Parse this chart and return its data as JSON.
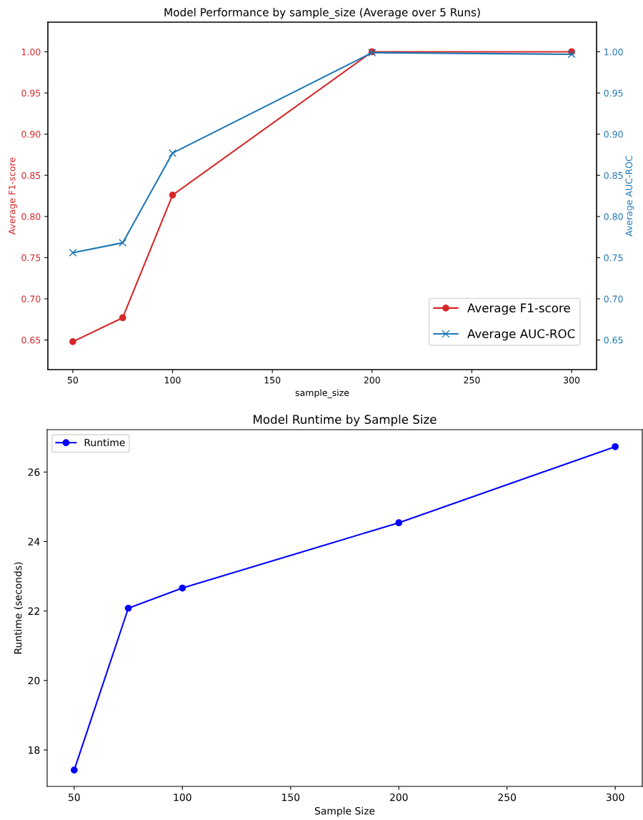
{
  "chart_data": [
    {
      "type": "line",
      "title": "Model Performance by sample_size (Average over 5 Runs)",
      "xlabel": "sample_size",
      "ylabel": "Average F1-score",
      "y2label": "Average AUC-ROC",
      "x": [
        50,
        75,
        100,
        200,
        300
      ],
      "series": [
        {
          "name": "Average F1-score",
          "color": "#d62728",
          "marker": "circle",
          "values": [
            0.648,
            0.677,
            0.826,
            1.0,
            1.0
          ]
        },
        {
          "name": "Average AUC-ROC",
          "color": "#1f77b4",
          "marker": "cross",
          "axis": "y2",
          "values": [
            0.756,
            0.768,
            0.877,
            0.999,
            0.997
          ]
        }
      ],
      "xlim": [
        37.5,
        312.5
      ],
      "xticks": [
        50,
        100,
        150,
        200,
        250,
        300
      ],
      "ylim": [
        0.614,
        1.036
      ],
      "yticks": [
        {
          "value": 0.65,
          "label": "0.65"
        },
        {
          "value": 0.7,
          "label": "0.70"
        },
        {
          "value": 0.75,
          "label": "0.75"
        },
        {
          "value": 0.8,
          "label": "0.80"
        },
        {
          "value": 0.85,
          "label": "0.85"
        },
        {
          "value": 0.9,
          "label": "0.90"
        },
        {
          "value": 0.95,
          "label": "0.95"
        },
        {
          "value": 1.0,
          "label": "1.00"
        }
      ],
      "y2lim": [
        0.614,
        1.036
      ],
      "y2ticks": [
        {
          "value": 0.65,
          "label": "0.65"
        },
        {
          "value": 0.7,
          "label": "0.70"
        },
        {
          "value": 0.75,
          "label": "0.75"
        },
        {
          "value": 0.8,
          "label": "0.80"
        },
        {
          "value": 0.85,
          "label": "0.85"
        },
        {
          "value": 0.9,
          "label": "0.90"
        },
        {
          "value": 0.95,
          "label": "0.95"
        },
        {
          "value": 1.0,
          "label": "1.00"
        }
      ],
      "grid": false,
      "legend": "bottom right"
    },
    {
      "type": "line",
      "title": "Model Runtime by Sample Size",
      "xlabel": "Sample Size",
      "ylabel": "Runtime (seconds)",
      "x": [
        50,
        75,
        100,
        200,
        300
      ],
      "series": [
        {
          "name": "Runtime",
          "color": "#0000ff",
          "marker": "circle",
          "values": [
            17.42,
            22.08,
            22.66,
            24.54,
            26.73
          ]
        }
      ],
      "xlim": [
        37.5,
        312.5
      ],
      "xticks": [
        50,
        100,
        150,
        200,
        250,
        300
      ],
      "ylim": [
        16.95,
        27.22
      ],
      "yticks": [
        18,
        20,
        22,
        24,
        26
      ],
      "grid": false,
      "legend": "top left"
    }
  ]
}
